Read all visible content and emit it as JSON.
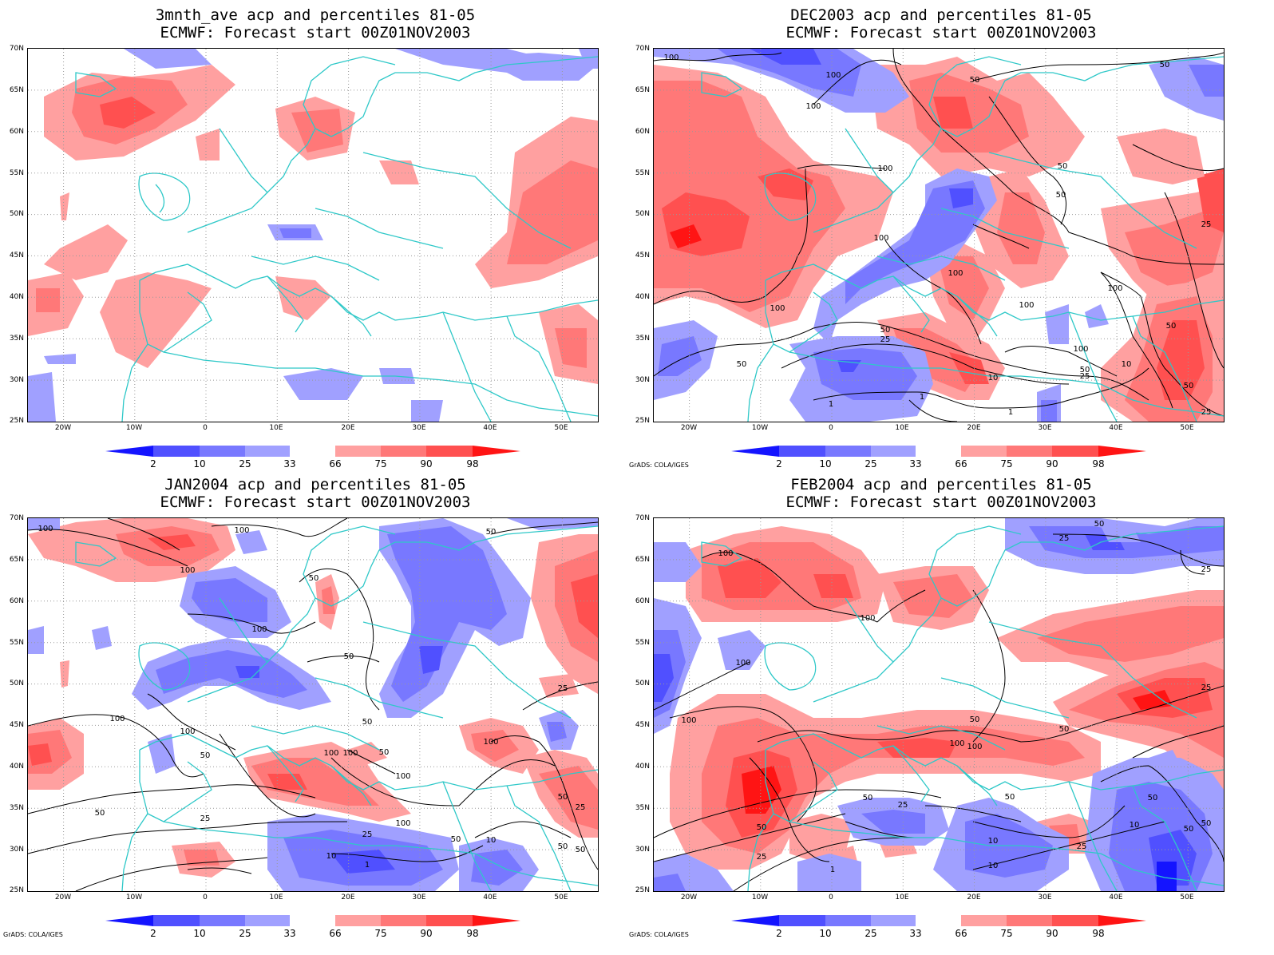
{
  "colorbar": {
    "labels": [
      "2",
      "10",
      "25",
      "33",
      "66",
      "75",
      "90",
      "98"
    ],
    "colors": [
      "#1414ff",
      "#5050ff",
      "#7878ff",
      "#a0a0ff",
      "#ffffff",
      "#ffa0a0",
      "#ff7878",
      "#ff5050",
      "#ff1414"
    ]
  },
  "lat_ticks": [
    "70N",
    "65N",
    "60N",
    "55N",
    "50N",
    "45N",
    "40N",
    "35N",
    "30N",
    "25N"
  ],
  "lon_ticks": [
    "20W",
    "10W",
    "0",
    "10E",
    "20E",
    "30E",
    "40E",
    "50E"
  ],
  "credit": "GrADS: COLA/IGES",
  "colors": {
    "coast": "#2ec8c8",
    "contour": "#000000",
    "grid": "#888888"
  },
  "panels": [
    {
      "title1": "3mnth_ave acp and percentiles 81-05",
      "title2": "ECMWF: Forecast start 00Z01NOV2003",
      "show_credit": false,
      "contour_labels": []
    },
    {
      "title1": "DEC2003 acp and percentiles 81-05",
      "title2": "ECMWF: Forecast start 00Z01NOV2003",
      "show_credit": true,
      "contour_labels": [
        "100",
        "100",
        "100",
        "50",
        "100",
        "50",
        "50",
        "50",
        "100",
        "100",
        "100",
        "25",
        "100",
        "100",
        "100",
        "50",
        "25",
        "50",
        "10",
        "10",
        "50",
        "50",
        "1",
        "1",
        "1",
        "25",
        "25",
        "50"
      ]
    },
    {
      "title1": "JAN2004 acp and percentiles 81-05",
      "title2": "ECMWF: Forecast start 00Z01NOV2003",
      "show_credit": true,
      "contour_labels": [
        "100",
        "100",
        "100",
        "50",
        "50",
        "100",
        "50",
        "100",
        "100",
        "100",
        "50",
        "100",
        "50",
        "100",
        "100",
        "50",
        "50",
        "25",
        "25",
        "10",
        "1",
        "25",
        "50",
        "10",
        "25",
        "50",
        "50",
        "50",
        "100"
      ]
    },
    {
      "title1": "FEB2004 acp and percentiles 81-05",
      "title2": "ECMWF: Forecast start 00Z01NOV2003",
      "show_credit": true,
      "contour_labels": [
        "50",
        "25",
        "25",
        "100",
        "100",
        "100",
        "25",
        "50",
        "100",
        "100",
        "50",
        "100",
        "50",
        "25",
        "50",
        "50",
        "25",
        "10",
        "10",
        "50",
        "50",
        "25",
        "1",
        "10",
        "50"
      ]
    }
  ]
}
